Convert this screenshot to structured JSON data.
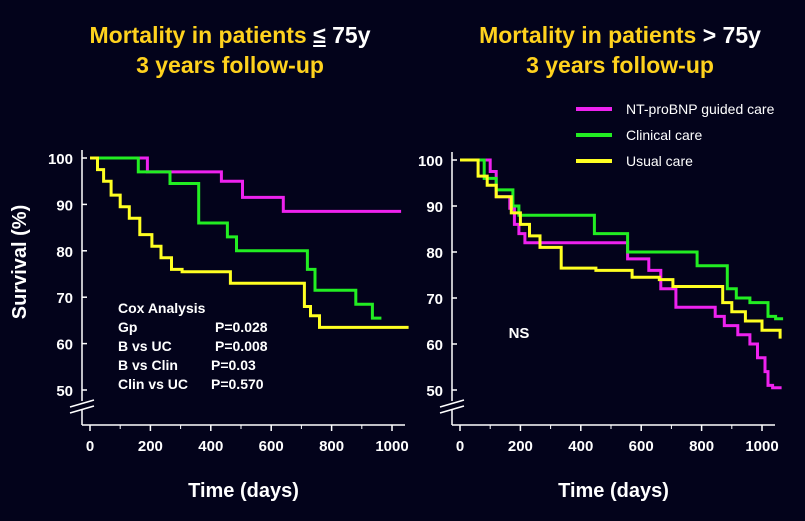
{
  "titles": {
    "left": {
      "line1_a": "Mortality in patients ",
      "symbol": "≤",
      "line1_b": " 75y",
      "line2": "3 years follow-up"
    },
    "right": {
      "line1_a": "Mortality in patients ",
      "symbol": ">",
      "line1_b": " 75y",
      "line2": "3 years follow-up"
    }
  },
  "legend": [
    {
      "label": "NT-proBNP guided care",
      "color": "#ee22ee"
    },
    {
      "label": "Clinical care",
      "color": "#22ee22"
    },
    {
      "label": "Usual care",
      "color": "#ffff22"
    }
  ],
  "cox": {
    "title": "Cox Analysis",
    "rows": [
      {
        "label": "Gp",
        "value": "P=0.028"
      },
      {
        "label": "B vs UC",
        "value": "P=0.008"
      },
      {
        "label": "B vs Clin",
        "value": "P=0.03"
      },
      {
        "label": "Clin vs UC",
        "value": "P=0.570"
      }
    ]
  },
  "right_annotation": "NS",
  "chart_data": [
    {
      "type": "line",
      "step": true,
      "title": "Mortality in patients ≤ 75y 3 years follow-up",
      "xlabel": "Time (days)",
      "ylabel": "Survival (%)",
      "xlim": [
        0,
        1070
      ],
      "ylim": [
        50,
        100
      ],
      "xticks": [
        "0",
        "200",
        "400",
        "600",
        "800",
        "1000"
      ],
      "yticks": [
        "100",
        "90",
        "80",
        "70",
        "60",
        "50"
      ],
      "axis_break": true,
      "series": [
        {
          "name": "NT-proBNP guided care",
          "color": "#ee22ee",
          "x": [
            0,
            190,
            190,
            435,
            435,
            505,
            505,
            640,
            640,
            1030
          ],
          "y": [
            100,
            100,
            97,
            97,
            95,
            95,
            91.5,
            91.5,
            88.5,
            88.5
          ]
        },
        {
          "name": "Clinical care",
          "color": "#22ee22",
          "x": [
            0,
            160,
            160,
            265,
            265,
            360,
            360,
            455,
            455,
            485,
            485,
            720,
            720,
            745,
            745,
            880,
            880,
            935,
            935,
            965
          ],
          "y": [
            100,
            100,
            97,
            97,
            94.5,
            94.5,
            86,
            86,
            83,
            83,
            80,
            80,
            76,
            76,
            71.5,
            71.5,
            68.5,
            68.5,
            65.5,
            65.5
          ]
        },
        {
          "name": "Usual care",
          "color": "#ffff22",
          "x": [
            0,
            25,
            25,
            45,
            45,
            70,
            70,
            100,
            100,
            130,
            130,
            165,
            165,
            205,
            205,
            235,
            235,
            270,
            270,
            305,
            305,
            465,
            465,
            710,
            710,
            730,
            730,
            760,
            760,
            1055
          ],
          "y": [
            100,
            100,
            97.5,
            97.5,
            95,
            95,
            92,
            92,
            89.5,
            89.5,
            87,
            87,
            83.5,
            83.5,
            81,
            81,
            78.5,
            78.5,
            76,
            76,
            75.5,
            75.5,
            73,
            73,
            68,
            68,
            66,
            66,
            63.5,
            63.5
          ]
        }
      ]
    },
    {
      "type": "line",
      "step": true,
      "title": "Mortality in patients > 75y 3 years follow-up",
      "xlabel": "Time (days)",
      "ylabel": "Survival (%)",
      "xlim": [
        0,
        1070
      ],
      "ylim": [
        50,
        100
      ],
      "xticks": [
        "0",
        "200",
        "400",
        "600",
        "800",
        "1000"
      ],
      "yticks": [
        "100",
        "90",
        "80",
        "70",
        "60",
        "50"
      ],
      "axis_break": true,
      "series": [
        {
          "name": "NT-proBNP guided care",
          "color": "#ee22ee",
          "x": [
            0,
            100,
            100,
            120,
            120,
            165,
            165,
            180,
            180,
            195,
            195,
            215,
            215,
            555,
            555,
            625,
            625,
            665,
            665,
            715,
            715,
            845,
            845,
            875,
            875,
            920,
            920,
            960,
            960,
            985,
            985,
            1010,
            1010,
            1020,
            1020,
            1035,
            1035,
            1065
          ],
          "y": [
            100,
            100,
            97.5,
            97.5,
            92,
            92,
            89.5,
            89.5,
            86,
            86,
            84,
            84,
            82,
            82,
            78.5,
            78.5,
            76,
            76,
            72,
            72,
            68,
            68,
            66,
            66,
            64,
            64,
            62,
            62,
            60,
            60,
            57,
            57,
            54,
            54,
            51,
            51,
            50.5,
            50.5
          ]
        },
        {
          "name": "Clinical care",
          "color": "#22ee22",
          "x": [
            0,
            80,
            80,
            120,
            120,
            175,
            175,
            195,
            195,
            445,
            445,
            555,
            555,
            785,
            785,
            885,
            885,
            915,
            915,
            960,
            960,
            1020,
            1020,
            1045,
            1045,
            1070
          ],
          "y": [
            100,
            100,
            96,
            96,
            93.5,
            93.5,
            90,
            90,
            88,
            88,
            84,
            84,
            80,
            80,
            77,
            77,
            72,
            72,
            70,
            70,
            69,
            69,
            66,
            66,
            65.5,
            65.5
          ]
        },
        {
          "name": "Usual care",
          "color": "#ffff22",
          "x": [
            0,
            60,
            60,
            90,
            90,
            120,
            120,
            170,
            170,
            200,
            200,
            230,
            230,
            265,
            265,
            335,
            335,
            450,
            450,
            570,
            570,
            660,
            660,
            705,
            705,
            870,
            870,
            900,
            900,
            945,
            945,
            1000,
            1000,
            1060,
            1060,
            1065
          ],
          "y": [
            100,
            100,
            96.5,
            96.5,
            94.5,
            94.5,
            92,
            92,
            88.5,
            88.5,
            86,
            86,
            83.5,
            83.5,
            81,
            81,
            76.5,
            76.5,
            76,
            76,
            74.5,
            74.5,
            74,
            74,
            72.5,
            72.5,
            69,
            69,
            67,
            67,
            65,
            65,
            63,
            63,
            61.5,
            61.5
          ]
        }
      ]
    }
  ]
}
